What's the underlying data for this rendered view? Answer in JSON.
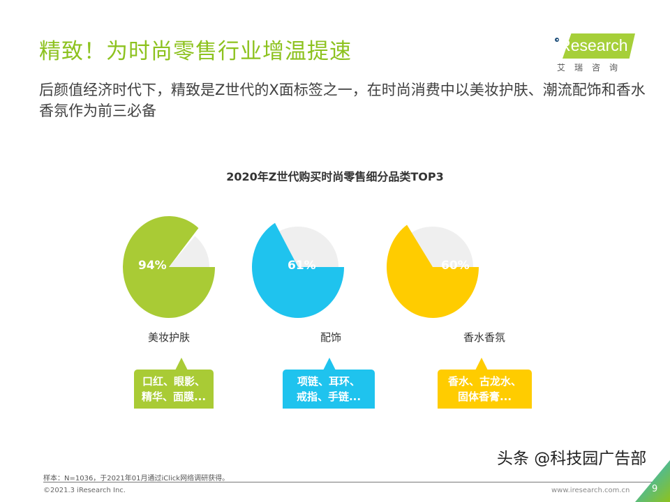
{
  "header": {
    "title": "精致！为时尚零售行业增温提速",
    "subtitle": "后颜值经济时代下，精致是Z世代的X面标签之一，在时尚消费中以美妆护肤、潮流配饰和香水香氛作为前三必备"
  },
  "logo": {
    "text": "iResearch",
    "cn": "艾瑞咨询"
  },
  "chart_data": {
    "type": "pie",
    "title": "2020年Z世代购买时尚零售细分品类TOP3",
    "categories": [
      "美妆护肤",
      "配饰",
      "香水香氛"
    ],
    "values": [
      94,
      61,
      60
    ],
    "labels": [
      "94%",
      "61%",
      "60%"
    ],
    "colors": [
      "#a9cb35",
      "#1fc3ee",
      "#ffcc00"
    ],
    "remainder_color": "#efefef",
    "examples": [
      [
        "口红、眼影、",
        "精华、面膜..."
      ],
      [
        "项链、耳环、",
        "戒指、手链..."
      ],
      [
        "香水、古龙水、",
        "固体香膏..."
      ]
    ]
  },
  "footer": {
    "note": "样本：N=1036，于2021年01月通过iClick网络调研获得。",
    "copyright": "©2021.3 iResearch Inc.",
    "url": "www.iresearch.com.cn",
    "page": "9",
    "watermark": "头条 @科技园广告部"
  }
}
